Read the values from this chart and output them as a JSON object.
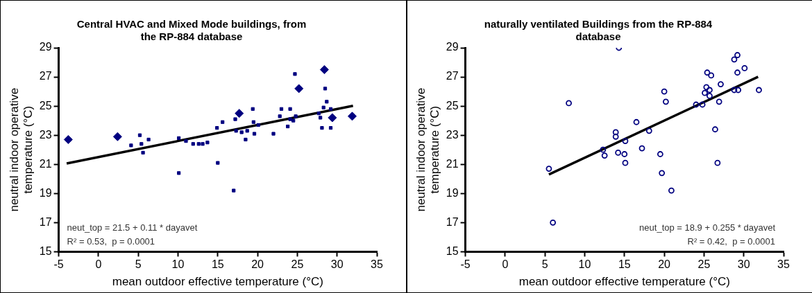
{
  "chart_data": [
    {
      "type": "scatter",
      "title": "Central HVAC and Mixed Mode buildings, from the RP-884 database",
      "xlabel": "mean outdoor effective temperature (°C)",
      "ylabel": "neutral indoor operative temperature (°C)",
      "xlim": [
        -5,
        35
      ],
      "xticks": [
        -5,
        0,
        5,
        10,
        15,
        20,
        25,
        30,
        35
      ],
      "ylim": [
        15,
        29
      ],
      "yticks": [
        15,
        17,
        19,
        21,
        23,
        25,
        27,
        29
      ],
      "grid": false,
      "legend": false,
      "annotations": [
        "neut_top = 21.5 + 0.11 * dayavet",
        "R² = 0.53,  p = 0.0001"
      ],
      "series": [
        {
          "type": "scatter",
          "marker": "diamond",
          "color": "#000080",
          "x": [
            -3.8,
            2.4,
            17.7,
            25.2,
            28.4,
            29.4,
            31.9
          ],
          "values": [
            22.7,
            22.9,
            24.5,
            26.2,
            27.5,
            24.2,
            24.3
          ]
        },
        {
          "type": "scatter",
          "marker": "square",
          "color": "#000080",
          "x": [
            4.1,
            5.2,
            5.4,
            5.6,
            6.3,
            10.1,
            10.1,
            11.0,
            11.9,
            12.6,
            13.1,
            13.7,
            14.9,
            15.0,
            15.6,
            17.0,
            17.2,
            17.3,
            18.0,
            18.5,
            18.7,
            19.4,
            19.5,
            19.6,
            20.1,
            22.0,
            22.8,
            23.0,
            23.8,
            24.1,
            24.1,
            24.5,
            24.7,
            24.8,
            27.7,
            27.9,
            28.1,
            28.5,
            28.3,
            28.7,
            29.2,
            29.2
          ],
          "values": [
            22.3,
            23.0,
            22.4,
            21.8,
            22.7,
            22.8,
            20.4,
            22.6,
            22.4,
            22.4,
            22.4,
            22.5,
            23.5,
            21.1,
            23.9,
            19.2,
            24.1,
            23.3,
            23.2,
            22.7,
            23.3,
            24.8,
            23.9,
            23.1,
            23.7,
            23.1,
            24.3,
            24.8,
            23.6,
            24.8,
            24.1,
            24.0,
            27.2,
            24.3,
            24.5,
            24.2,
            23.5,
            26.2,
            24.9,
            25.3,
            24.8,
            23.5
          ]
        },
        {
          "type": "line",
          "marker": "none",
          "color": "#000000",
          "x": [
            -4,
            32
          ],
          "values": [
            21.06,
            25.02
          ]
        }
      ]
    },
    {
      "type": "scatter",
      "title": "naturally ventilated Buildings from the RP-884 database",
      "xlabel": "mean outdoor effective temperature (°C)",
      "ylabel": "neutral indoor operative temperature (°C)",
      "xlim": [
        -5,
        35
      ],
      "xticks": [
        -5,
        0,
        5,
        10,
        15,
        20,
        25,
        30,
        35
      ],
      "ylim": [
        15,
        29
      ],
      "yticks": [
        15,
        17,
        19,
        21,
        23,
        25,
        27,
        29
      ],
      "grid": false,
      "legend": false,
      "annotations": [
        "neut_top = 18.9 + 0.255 * dayavet",
        "R² = 0.42,  p = 0.0001"
      ],
      "series": [
        {
          "type": "scatter",
          "marker": "circle",
          "color": "#000080",
          "x": [
            14.3,
            8.0,
            13.9,
            13.9,
            12.3,
            12.5,
            14.2,
            15.0,
            15.1,
            15.1,
            5.5,
            6.0,
            16.5,
            17.2,
            18.1,
            19.5,
            19.7,
            20.0,
            20.2,
            20.9,
            24.0,
            24.8,
            25.1,
            25.3,
            25.7,
            25.7,
            25.4,
            25.9,
            26.9,
            27.1,
            26.4,
            26.7,
            28.8,
            29.2,
            29.2,
            28.8,
            29.3,
            30.1,
            31.9
          ],
          "values": [
            29.0,
            25.2,
            23.2,
            22.9,
            22.0,
            21.6,
            21.8,
            21.7,
            21.1,
            22.6,
            20.7,
            17.0,
            23.9,
            22.1,
            23.3,
            21.7,
            20.4,
            26.0,
            25.3,
            19.2,
            25.1,
            25.1,
            25.9,
            26.3,
            26.1,
            25.7,
            27.3,
            27.1,
            25.3,
            26.5,
            23.4,
            21.1,
            28.2,
            28.5,
            27.3,
            26.1,
            26.1,
            27.6,
            26.1
          ]
        },
        {
          "type": "line",
          "marker": "none",
          "color": "#000000",
          "x": [
            5.5,
            31.8
          ],
          "values": [
            20.3,
            27.01
          ]
        }
      ]
    }
  ]
}
